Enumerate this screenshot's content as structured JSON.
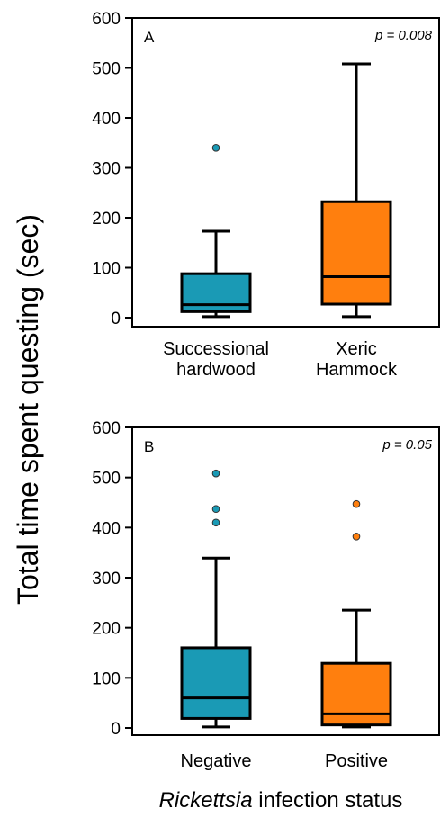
{
  "figure": {
    "ylabel": "Total time spent questing (sec)",
    "xlabel_italic": "Rickettsia",
    "xlabel_rest": " infection status"
  },
  "chart_data": [
    {
      "type": "box",
      "panel_label": "A",
      "p_value": "p = 0.008",
      "ylim": [
        0,
        600
      ],
      "yticks": [
        "0",
        "100",
        "200",
        "300",
        "400",
        "500",
        "600"
      ],
      "categories": [
        {
          "lines": [
            "Successional",
            "hardwood"
          ],
          "color": "#1a9ab5",
          "whisker_low": 2,
          "q1": 12,
          "median": 26,
          "q3": 88,
          "whisker_high": 173,
          "outliers": [
            340
          ]
        },
        {
          "lines": [
            "Xeric",
            "Hammock"
          ],
          "color": "#ff7f0e",
          "whisker_low": 2,
          "q1": 27,
          "median": 82,
          "q3": 232,
          "whisker_high": 508,
          "outliers": []
        }
      ]
    },
    {
      "type": "box",
      "panel_label": "B",
      "p_value": "p = 0.05",
      "ylim": [
        0,
        600
      ],
      "yticks": [
        "0",
        "100",
        "200",
        "300",
        "400",
        "500",
        "600"
      ],
      "categories": [
        {
          "lines": [
            "Negative"
          ],
          "color": "#1a9ab5",
          "whisker_low": 2,
          "q1": 19,
          "median": 60,
          "q3": 160,
          "whisker_high": 339,
          "outliers": [
            410,
            437,
            508
          ]
        },
        {
          "lines": [
            "Positive"
          ],
          "color": "#ff7f0e",
          "whisker_low": 2,
          "q1": 6,
          "median": 28,
          "q3": 129,
          "whisker_high": 235,
          "outliers": [
            382,
            447
          ]
        }
      ]
    }
  ]
}
